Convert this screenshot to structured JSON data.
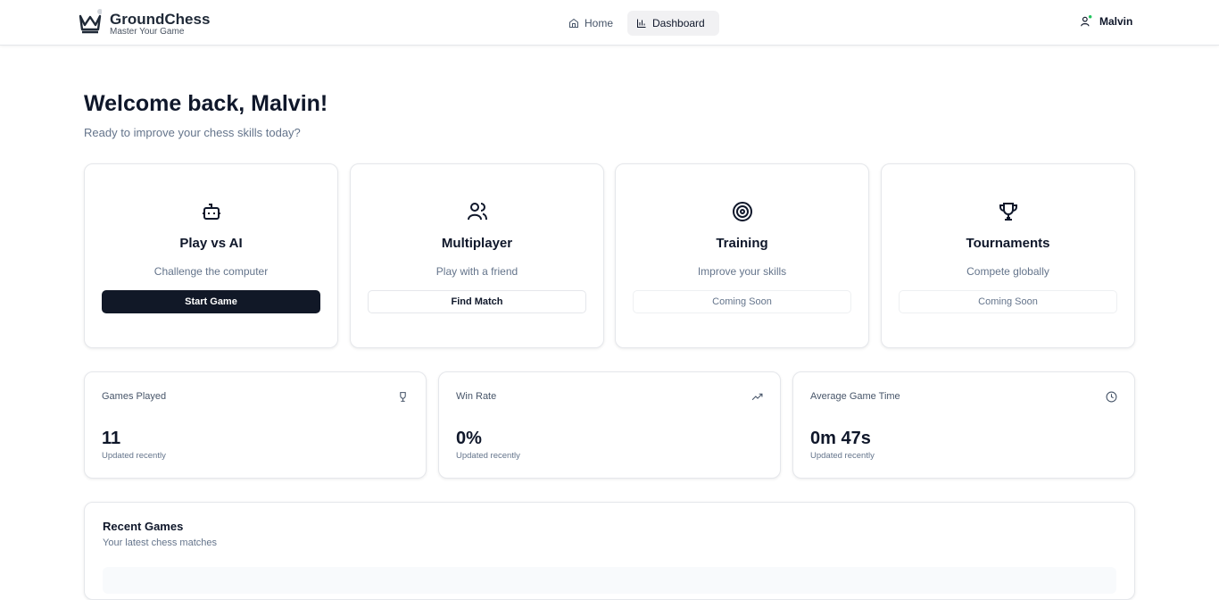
{
  "header": {
    "brand": "GroundChess",
    "tagline": "Master Your Game",
    "nav": [
      "Home",
      "Dashboard"
    ],
    "user": "Malvin"
  },
  "welcome": {
    "title": "Welcome back, Malvin!",
    "subtitle": "Ready to improve your chess skills today?"
  },
  "modes": [
    {
      "title": "Play vs AI",
      "description": "Challenge the computer",
      "button": "Start Game"
    },
    {
      "title": "Multiplayer",
      "description": "Play with a friend",
      "button": "Find Match"
    },
    {
      "title": "Training",
      "description": "Improve your skills",
      "button": "Coming Soon"
    },
    {
      "title": "Tournaments",
      "description": "Compete globally",
      "button": "Coming Soon"
    }
  ],
  "stats": [
    {
      "label": "Games Played",
      "value": "11",
      "note": "Updated recently"
    },
    {
      "label": "Win Rate",
      "value": "0%",
      "note": "Updated recently"
    },
    {
      "label": "Average Game Time",
      "value": "0m 47s",
      "note": "Updated recently"
    }
  ],
  "recent_games": {
    "title": "Recent Games",
    "subtitle": "Your latest chess matches"
  }
}
